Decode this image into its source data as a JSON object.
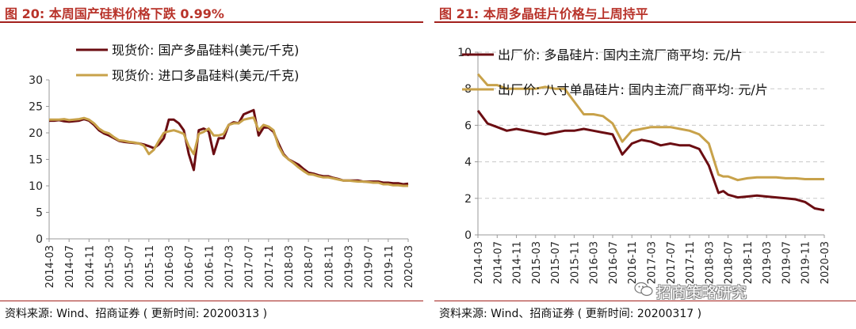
{
  "left": {
    "title": "图 20:  本周国产硅料价格下跌 0.99%",
    "source": "资料来源:  Wind、招商证券 ( 更新时间:  20200313 )",
    "chart_data": {
      "type": "line",
      "ylim": [
        0,
        30
      ],
      "yticks": [
        "0",
        "5",
        "10",
        "15",
        "20",
        "25",
        "30"
      ],
      "xticks": [
        "2014-03",
        "2014-07",
        "2014-11",
        "2015-03",
        "2015-07",
        "2015-11",
        "2016-03",
        "2016-07",
        "2016-11",
        "2017-03",
        "2017-07",
        "2017-11",
        "2018-03",
        "2018-07",
        "2018-11",
        "2019-03",
        "2019-07",
        "2019-11",
        "2020-03"
      ],
      "legend_position": "top-center",
      "colors": [
        "#6b0d12",
        "#c8a24a"
      ],
      "series": [
        {
          "name": "现货价: 国产多晶硅料(美元/千克)",
          "x": [
            0,
            1,
            2,
            3,
            4,
            5,
            6,
            7,
            8,
            9,
            10,
            11,
            12,
            13,
            14,
            15,
            16,
            17,
            18,
            19,
            20,
            21,
            22,
            23,
            24,
            25,
            26,
            27,
            28,
            29,
            30,
            31,
            32,
            33,
            34,
            35,
            36,
            37,
            38,
            39,
            40,
            41,
            42,
            43,
            44,
            45,
            46,
            47,
            48,
            49,
            50,
            51,
            52,
            53,
            54,
            55,
            56,
            57,
            58,
            59,
            60,
            61,
            62,
            63,
            64,
            65,
            66,
            67,
            68,
            69,
            70,
            71,
            72
          ],
          "values": [
            22.3,
            22.3,
            22.4,
            22.2,
            22.1,
            22.2,
            22.3,
            22.6,
            22.3,
            21.5,
            20.5,
            19.9,
            19.5,
            19,
            18.5,
            18.3,
            18.2,
            18.1,
            18,
            17.8,
            17.5,
            17.1,
            17.8,
            19,
            22.5,
            22.5,
            21.8,
            20.5,
            16,
            13,
            20.5,
            20.8,
            20.3,
            16,
            19,
            19,
            21.5,
            22,
            21.8,
            23.5,
            23.9,
            24.3,
            19.5,
            21,
            21,
            20.2,
            18,
            16,
            15,
            14.5,
            14,
            13.2,
            12.5,
            12.3,
            12,
            11.8,
            11.8,
            11.5,
            11.3,
            11,
            11,
            11,
            11,
            10.8,
            10.8,
            10.8,
            10.8,
            10.6,
            10.6,
            10.5,
            10.5,
            10.3,
            10.4
          ]
        },
        {
          "name": "现货价: 进口多晶硅料(美元/千克)",
          "x": [
            0,
            1,
            2,
            3,
            4,
            5,
            6,
            7,
            8,
            9,
            10,
            11,
            12,
            13,
            14,
            15,
            16,
            17,
            18,
            19,
            20,
            21,
            22,
            23,
            24,
            25,
            26,
            27,
            28,
            29,
            30,
            31,
            32,
            33,
            34,
            35,
            36,
            37,
            38,
            39,
            40,
            41,
            42,
            43,
            44,
            45,
            46,
            47,
            48,
            49,
            50,
            51,
            52,
            53,
            54,
            55,
            56,
            57,
            58,
            59,
            60,
            61,
            62,
            63,
            64,
            65,
            66,
            67,
            68,
            69,
            70,
            71,
            72
          ],
          "values": [
            22.5,
            22.5,
            22.5,
            22.6,
            22.4,
            22.5,
            22.6,
            22.8,
            22.5,
            21.8,
            20.8,
            20.2,
            19.9,
            19.2,
            18.6,
            18.5,
            18.3,
            18.2,
            18,
            17.6,
            16,
            16.8,
            18.5,
            20,
            20.3,
            20.5,
            20.2,
            19.8,
            17.5,
            16,
            19.8,
            20.2,
            20.8,
            19.5,
            19.5,
            19.8,
            21.5,
            21.8,
            21.8,
            22.5,
            22.7,
            22.9,
            20.5,
            21.5,
            21.2,
            20.5,
            17.5,
            15.8,
            15,
            14.3,
            13.5,
            12.8,
            12.2,
            12.1,
            11.8,
            11.6,
            11.6,
            11.4,
            11.2,
            11,
            11,
            10.9,
            10.8,
            10.8,
            10.7,
            10.6,
            10.6,
            10.3,
            10.3,
            10.1,
            10.1,
            10,
            10
          ]
        }
      ]
    }
  },
  "right": {
    "title": "图 21:  本周多晶硅片价格与上周持平",
    "source": "资料来源:  Wind、招商证券 ( 更新时间:  20200317 )",
    "watermark": "招商策略研究",
    "chart_data": {
      "type": "line",
      "ylim": [
        0,
        10
      ],
      "yticks": [
        "0",
        "2",
        "4",
        "6",
        "8",
        "10"
      ],
      "xticks": [
        "2014-03",
        "2014-07",
        "2014-11",
        "2015-03",
        "2015-07",
        "2015-11",
        "2016-03",
        "2016-07",
        "2016-11",
        "2017-03",
        "2017-07",
        "2017-11",
        "2018-03",
        "2018-07",
        "2018-11",
        "2019-03",
        "2019-07",
        "2019-11",
        "2020-03"
      ],
      "grid": true,
      "legend_position": "top-left",
      "colors": [
        "#6b0d12",
        "#c8a24a"
      ],
      "series": [
        {
          "name": "出厂价: 多晶硅片: 国内主流厂商平均: 元/片",
          "x": [
            0,
            2,
            4,
            6,
            8,
            10,
            12,
            14,
            16,
            18,
            20,
            22,
            24,
            26,
            28,
            30,
            32,
            34,
            36,
            38,
            40,
            42,
            44,
            46,
            48,
            50,
            51,
            52,
            54,
            56,
            58,
            60,
            62,
            64,
            66,
            68,
            70,
            72
          ],
          "values": [
            6.8,
            6.1,
            5.9,
            5.7,
            5.8,
            5.7,
            5.6,
            5.5,
            5.6,
            5.7,
            5.7,
            5.8,
            5.7,
            5.6,
            5.5,
            4.4,
            5.0,
            5.2,
            5.1,
            4.9,
            5.0,
            4.9,
            4.9,
            4.7,
            3.8,
            2.3,
            2.4,
            2.2,
            2.05,
            2.1,
            2.15,
            2.1,
            2.05,
            2.0,
            1.95,
            1.8,
            1.45,
            1.35
          ]
        },
        {
          "name": "出厂价: 八寸单晶硅片: 国内主流厂商平均: 元/片",
          "x": [
            0,
            2,
            4,
            6,
            8,
            10,
            12,
            14,
            16,
            18,
            20,
            22,
            24,
            26,
            28,
            30,
            32,
            34,
            36,
            38,
            40,
            42,
            44,
            46,
            48,
            50,
            51,
            52,
            54,
            56,
            58,
            60,
            62,
            64,
            66,
            68,
            70,
            72
          ],
          "values": [
            8.8,
            8.2,
            8.2,
            8.0,
            8.0,
            8.0,
            8.0,
            8.1,
            8.0,
            8.0,
            7.3,
            6.6,
            6.6,
            6.5,
            6.1,
            5.1,
            5.7,
            5.8,
            5.9,
            5.9,
            5.9,
            5.8,
            5.7,
            5.5,
            5.0,
            3.3,
            3.2,
            3.2,
            3.0,
            3.1,
            3.15,
            3.15,
            3.15,
            3.1,
            3.1,
            3.05,
            3.05,
            3.05
          ]
        }
      ]
    }
  }
}
